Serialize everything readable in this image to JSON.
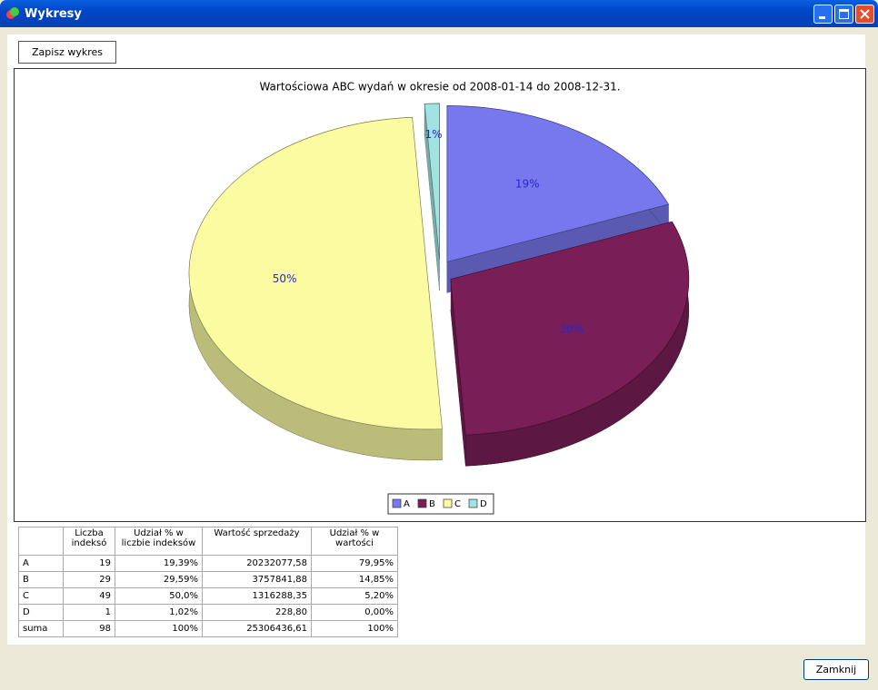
{
  "window": {
    "title": "Wykresy"
  },
  "buttons": {
    "save": "Zapisz wykres",
    "close": "Zamknij"
  },
  "chart_data": {
    "type": "pie",
    "title": "Wartościowa ABC wydań w okresie od 2008-01-14 do 2008-12-31.",
    "categories": [
      "A",
      "B",
      "C",
      "D"
    ],
    "values": [
      19,
      30,
      50,
      1
    ],
    "value_labels": [
      "19%",
      "30%",
      "50%",
      "1%"
    ],
    "colors": [
      "#7878ee",
      "#7a1e58",
      "#fbfba2",
      "#a2e2e2"
    ],
    "legend": "bottom"
  },
  "table": {
    "header": [
      "Liczba indeksó",
      "Udział % w liczbie indeksów",
      "Wartość sprzedaży",
      "Udział % w wartości"
    ],
    "rows": [
      [
        "A",
        "19",
        "19,39%",
        "20232077,58",
        "79,95%"
      ],
      [
        "B",
        "29",
        "29,59%",
        "3757841,88",
        "14,85%"
      ],
      [
        "C",
        "49",
        "50,0%",
        "1316288,35",
        "5,20%"
      ],
      [
        "D",
        "1",
        "1,02%",
        "228,80",
        "0,00%"
      ],
      [
        "suma",
        "98",
        "100%",
        "25306436,61",
        "100%"
      ]
    ]
  }
}
